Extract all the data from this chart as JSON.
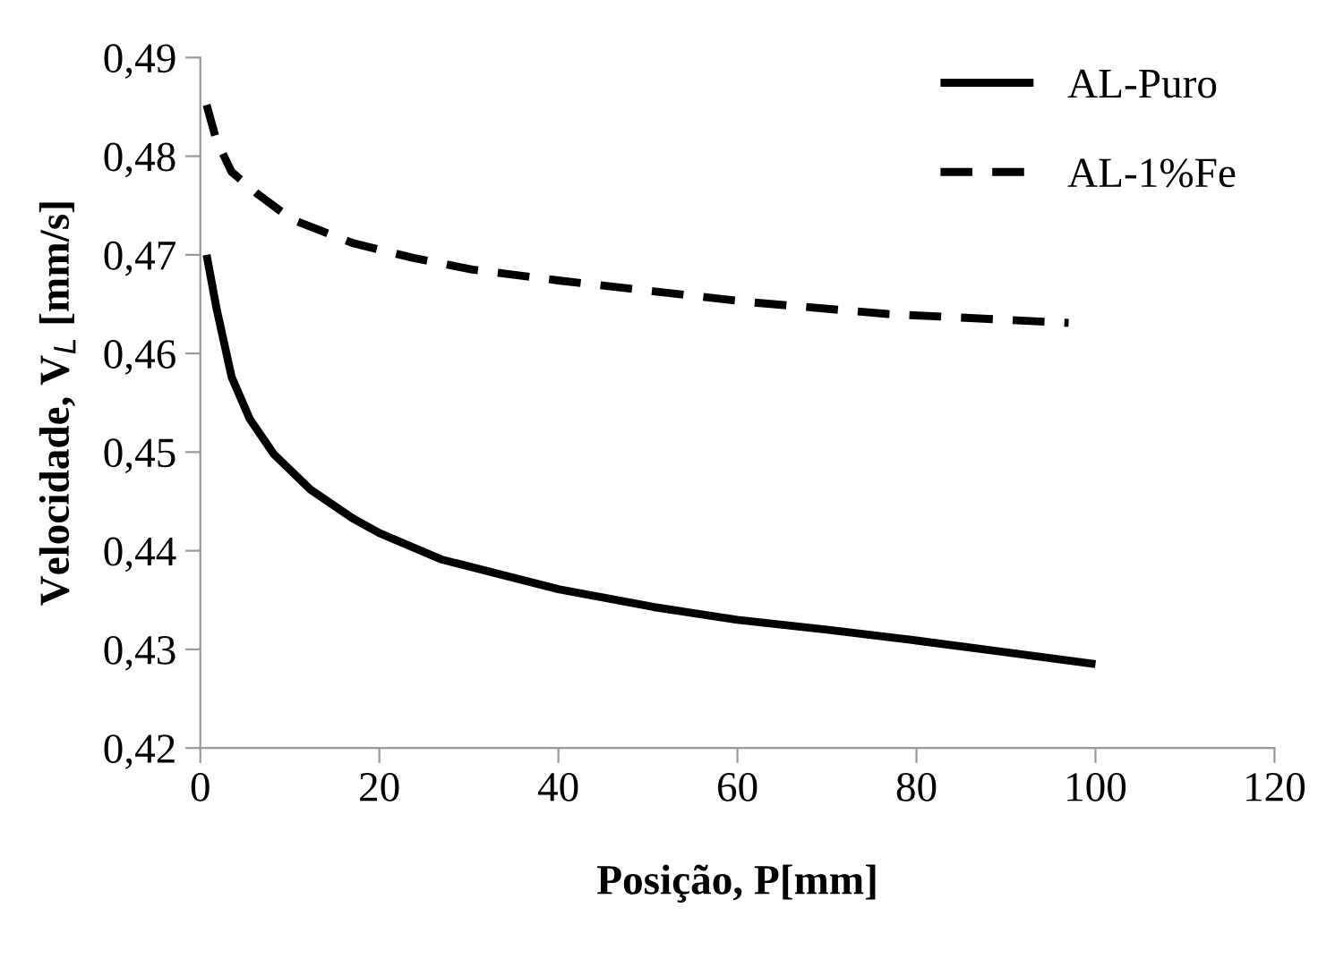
{
  "chart_data": {
    "type": "line",
    "xlabel": "Posição, P[mm]",
    "ylabel": "Velocidade, V$_{L}$ [mm/s]",
    "series": [
      {
        "name": "AL-Puro",
        "color": "#000000",
        "line_style": "solid",
        "x": [
          0.7,
          1.8,
          3.5,
          5.5,
          8.2,
          12.3,
          17,
          20,
          27,
          40,
          50.6,
          60,
          70,
          80,
          90,
          100
        ],
        "values": [
          0.47,
          0.4646,
          0.4576,
          0.4534,
          0.4498,
          0.4462,
          0.4433,
          0.4418,
          0.4391,
          0.4361,
          0.4343,
          0.433,
          0.432,
          0.4309,
          0.4297,
          0.4285
        ]
      },
      {
        "name": "AL-1%Fe",
        "color": "#000000",
        "line_style": "dashed",
        "x": [
          0.7,
          1.8,
          3.5,
          6.2,
          10.2,
          17,
          23.7,
          30.4,
          40,
          50.6,
          61.4,
          76.8,
          97
        ],
        "values": [
          0.4852,
          0.4816,
          0.4784,
          0.4763,
          0.4736,
          0.4712,
          0.4697,
          0.4685,
          0.4674,
          0.4663,
          0.4652,
          0.464,
          0.4631
        ]
      }
    ],
    "xlim": [
      0,
      120
    ],
    "xticks": [
      0,
      20,
      40,
      60,
      80,
      100,
      120
    ],
    "ylim": [
      0.42,
      0.49
    ],
    "yticks": [
      {
        "value": 0.42,
        "label": "0,42"
      },
      {
        "value": 0.43,
        "label": "0,43"
      },
      {
        "value": 0.44,
        "label": "0,44"
      },
      {
        "value": 0.45,
        "label": "0,45"
      },
      {
        "value": 0.46,
        "label": "0,46"
      },
      {
        "value": 0.47,
        "label": "0,47"
      },
      {
        "value": 0.48,
        "label": "0,48"
      },
      {
        "value": 0.49,
        "label": "0,49"
      }
    ],
    "grid": false,
    "legend": "top right",
    "marker": "none"
  }
}
